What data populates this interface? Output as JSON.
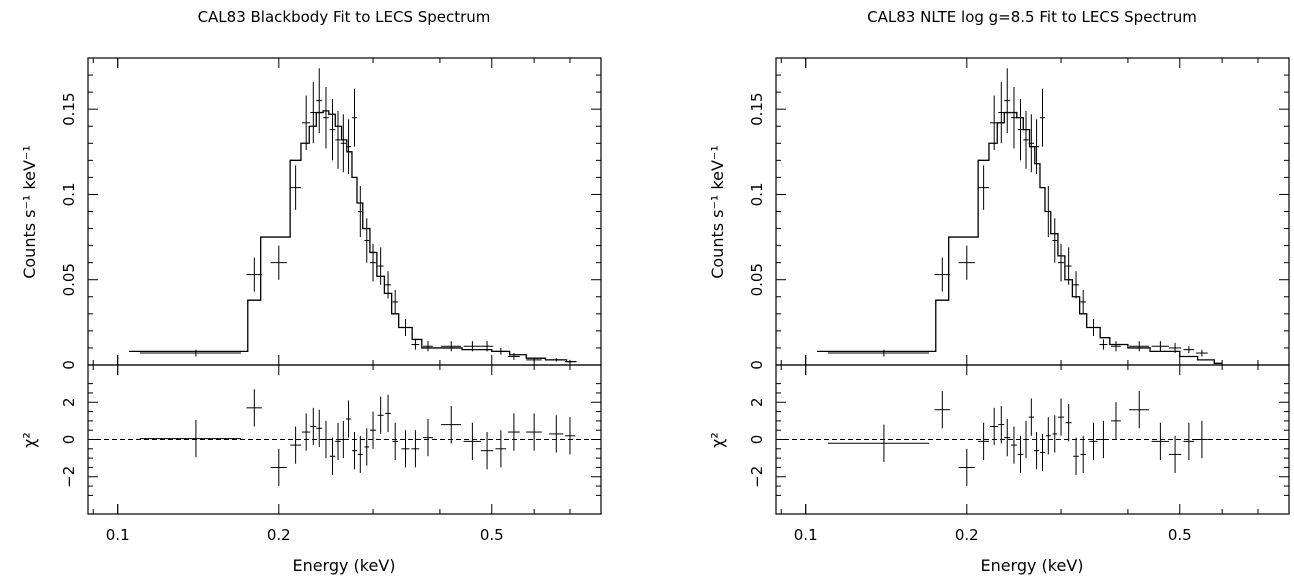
{
  "panels": [
    {
      "title": "CAL83 Blackbody Fit to LECS Spectrum",
      "top_ylabel": "Counts s⁻¹ keV⁻¹",
      "bottom_ylabel": "χ²",
      "xlabel": "Energy (keV)"
    },
    {
      "title": "CAL83 NLTE log g=8.5 Fit to LECS Spectrum",
      "top_ylabel": "Counts s⁻¹ keV⁻¹",
      "bottom_ylabel": "χ²",
      "xlabel": "Energy (keV)"
    }
  ],
  "chart_data": [
    {
      "type": "line",
      "title": "CAL83 Blackbody Fit to LECS Spectrum",
      "xlabel": "Energy (keV)",
      "xscale": "log",
      "xlim": [
        0.088,
        0.8
      ],
      "xticks": [
        0.1,
        0.2,
        0.5
      ],
      "xtick_labels": [
        "0.1",
        "0.2",
        "0.5"
      ],
      "top": {
        "ylabel": "Counts s⁻¹ keV⁻¹",
        "ylim": [
          0,
          0.18
        ],
        "yticks": [
          0,
          0.05,
          0.1,
          0.15
        ],
        "ytick_labels": [
          "0",
          "0.05",
          "0.1",
          "0.15"
        ],
        "data": {
          "x": [
            0.14,
            0.18,
            0.2,
            0.215,
            0.225,
            0.232,
            0.238,
            0.245,
            0.252,
            0.258,
            0.264,
            0.27,
            0.277,
            0.284,
            0.292,
            0.3,
            0.31,
            0.32,
            0.33,
            0.345,
            0.36,
            0.38,
            0.42,
            0.46,
            0.49,
            0.52,
            0.55,
            0.6,
            0.66,
            0.7
          ],
          "xerr_low": [
            0.03,
            0.006,
            0.007,
            0.005,
            0.004,
            0.003,
            0.003,
            0.003,
            0.003,
            0.003,
            0.003,
            0.003,
            0.003,
            0.003,
            0.003,
            0.004,
            0.004,
            0.004,
            0.004,
            0.006,
            0.006,
            0.008,
            0.018,
            0.017,
            0.013,
            0.012,
            0.014,
            0.02,
            0.02,
            0.015
          ],
          "xerr_high": [
            0.03,
            0.006,
            0.007,
            0.005,
            0.004,
            0.003,
            0.003,
            0.003,
            0.003,
            0.003,
            0.003,
            0.003,
            0.003,
            0.003,
            0.003,
            0.004,
            0.004,
            0.004,
            0.004,
            0.006,
            0.006,
            0.008,
            0.018,
            0.017,
            0.013,
            0.012,
            0.014,
            0.02,
            0.02,
            0.015
          ],
          "y": [
            0.007,
            0.053,
            0.06,
            0.104,
            0.142,
            0.148,
            0.155,
            0.145,
            0.138,
            0.132,
            0.13,
            0.128,
            0.145,
            0.09,
            0.073,
            0.06,
            0.058,
            0.047,
            0.037,
            0.022,
            0.012,
            0.011,
            0.011,
            0.011,
            0.011,
            0.008,
            0.005,
            0.003,
            0.003,
            0.002
          ],
          "yerr": [
            0.002,
            0.01,
            0.01,
            0.013,
            0.016,
            0.018,
            0.019,
            0.018,
            0.018,
            0.017,
            0.017,
            0.016,
            0.017,
            0.015,
            0.013,
            0.011,
            0.011,
            0.008,
            0.007,
            0.005,
            0.003,
            0.003,
            0.003,
            0.003,
            0.003,
            0.002,
            0.002,
            0.001,
            0.001,
            0.001
          ]
        },
        "model": {
          "edges": [
            0.105,
            0.175,
            0.185,
            0.21,
            0.22,
            0.228,
            0.235,
            0.242,
            0.248,
            0.255,
            0.262,
            0.268,
            0.274,
            0.28,
            0.287,
            0.296,
            0.305,
            0.315,
            0.325,
            0.335,
            0.355,
            0.37,
            0.4,
            0.44,
            0.5,
            0.54,
            0.58,
            0.63,
            0.69,
            0.72
          ],
          "values": [
            0.008,
            0.038,
            0.075,
            0.12,
            0.13,
            0.14,
            0.148,
            0.149,
            0.147,
            0.14,
            0.132,
            0.125,
            0.11,
            0.095,
            0.08,
            0.066,
            0.052,
            0.042,
            0.03,
            0.022,
            0.015,
            0.01,
            0.01,
            0.009,
            0.008,
            0.006,
            0.004,
            0.003,
            0.002
          ]
        }
      },
      "bottom": {
        "ylabel": "χ²",
        "ylim": [
          -4,
          4
        ],
        "yticks": [
          -2,
          0,
          2
        ],
        "ytick_labels": [
          "−2",
          "0",
          "2"
        ],
        "data": {
          "y": [
            0.05,
            1.7,
            -1.5,
            -0.3,
            0.4,
            0.7,
            0.6,
            0.0,
            -0.9,
            -0.1,
            0.0,
            1.1,
            -0.6,
            -0.8,
            -0.4,
            0.5,
            1.3,
            1.4,
            -0.1,
            -0.5,
            -0.5,
            0.1,
            0.8,
            -0.1,
            -0.6,
            -0.5,
            0.4,
            0.4,
            0.3,
            0.2
          ],
          "yerr": [
            1.0,
            1.0,
            1.0,
            1.0,
            1.0,
            1.0,
            1.0,
            1.0,
            1.0,
            1.0,
            1.0,
            1.0,
            1.0,
            1.0,
            1.0,
            1.0,
            1.0,
            1.0,
            1.0,
            1.0,
            1.0,
            1.0,
            1.0,
            1.0,
            1.0,
            1.0,
            1.0,
            1.0,
            1.0,
            1.0
          ]
        }
      }
    },
    {
      "type": "line",
      "title": "CAL83 NLTE log g=8.5 Fit to LECS Spectrum",
      "xlabel": "Energy (keV)",
      "xscale": "log",
      "xlim": [
        0.088,
        0.8
      ],
      "xticks": [
        0.1,
        0.2,
        0.5
      ],
      "xtick_labels": [
        "0.1",
        "0.2",
        "0.5"
      ],
      "top": {
        "ylabel": "Counts s⁻¹ keV⁻¹",
        "ylim": [
          0,
          0.18
        ],
        "yticks": [
          0,
          0.05,
          0.1,
          0.15
        ],
        "ytick_labels": [
          "0",
          "0.05",
          "0.1",
          "0.15"
        ],
        "data": {
          "x": [
            0.14,
            0.18,
            0.2,
            0.215,
            0.225,
            0.232,
            0.238,
            0.245,
            0.252,
            0.258,
            0.264,
            0.27,
            0.277,
            0.284,
            0.292,
            0.3,
            0.31,
            0.32,
            0.33,
            0.345,
            0.36,
            0.38,
            0.42,
            0.46,
            0.49,
            0.52,
            0.55
          ],
          "xerr_low": [
            0.03,
            0.006,
            0.007,
            0.005,
            0.004,
            0.003,
            0.003,
            0.003,
            0.003,
            0.003,
            0.003,
            0.003,
            0.003,
            0.003,
            0.003,
            0.004,
            0.004,
            0.004,
            0.004,
            0.006,
            0.006,
            0.008,
            0.018,
            0.017,
            0.013,
            0.012,
            0.014
          ],
          "xerr_high": [
            0.03,
            0.006,
            0.007,
            0.005,
            0.004,
            0.003,
            0.003,
            0.003,
            0.003,
            0.003,
            0.003,
            0.003,
            0.003,
            0.003,
            0.003,
            0.004,
            0.004,
            0.004,
            0.004,
            0.006,
            0.006,
            0.008,
            0.018,
            0.017,
            0.013,
            0.012,
            0.014
          ],
          "y": [
            0.007,
            0.053,
            0.06,
            0.104,
            0.142,
            0.148,
            0.155,
            0.145,
            0.138,
            0.132,
            0.13,
            0.128,
            0.145,
            0.09,
            0.073,
            0.06,
            0.058,
            0.047,
            0.037,
            0.022,
            0.012,
            0.011,
            0.011,
            0.011,
            0.01,
            0.009,
            0.007
          ],
          "yerr": [
            0.002,
            0.01,
            0.01,
            0.013,
            0.016,
            0.018,
            0.019,
            0.018,
            0.018,
            0.017,
            0.017,
            0.016,
            0.017,
            0.015,
            0.013,
            0.011,
            0.011,
            0.008,
            0.007,
            0.005,
            0.003,
            0.003,
            0.003,
            0.003,
            0.003,
            0.002,
            0.002
          ]
        },
        "model": {
          "edges": [
            0.105,
            0.175,
            0.185,
            0.21,
            0.22,
            0.228,
            0.235,
            0.242,
            0.248,
            0.255,
            0.262,
            0.268,
            0.274,
            0.28,
            0.287,
            0.296,
            0.305,
            0.315,
            0.325,
            0.335,
            0.355,
            0.37,
            0.4,
            0.44,
            0.5,
            0.54,
            0.58,
            0.6
          ],
          "values": [
            0.008,
            0.038,
            0.075,
            0.12,
            0.13,
            0.142,
            0.148,
            0.148,
            0.145,
            0.138,
            0.128,
            0.118,
            0.104,
            0.09,
            0.077,
            0.064,
            0.05,
            0.04,
            0.03,
            0.022,
            0.016,
            0.012,
            0.01,
            0.008,
            0.005,
            0.003,
            0.001
          ]
        }
      },
      "bottom": {
        "ylabel": "χ²",
        "ylim": [
          -4,
          4
        ],
        "yticks": [
          -2,
          0,
          2
        ],
        "ytick_labels": [
          "−2",
          "0",
          "2"
        ],
        "data": {
          "y": [
            -0.2,
            1.6,
            -1.5,
            -0.1,
            0.7,
            0.8,
            0.1,
            -0.3,
            -0.8,
            0.0,
            1.2,
            -0.6,
            -0.7,
            0.2,
            0.3,
            1.2,
            0.9,
            -0.9,
            -0.8,
            -0.1,
            0.0,
            1.0,
            1.6,
            -0.1,
            -0.8,
            -0.1,
            0.0
          ],
          "yerr": [
            1.0,
            1.0,
            1.0,
            1.0,
            1.0,
            1.0,
            1.0,
            1.0,
            1.0,
            1.0,
            1.0,
            1.0,
            1.0,
            1.0,
            1.0,
            1.0,
            1.0,
            1.0,
            1.0,
            1.0,
            1.0,
            1.0,
            1.0,
            1.0,
            1.0,
            1.0,
            1.0
          ]
        }
      }
    }
  ]
}
